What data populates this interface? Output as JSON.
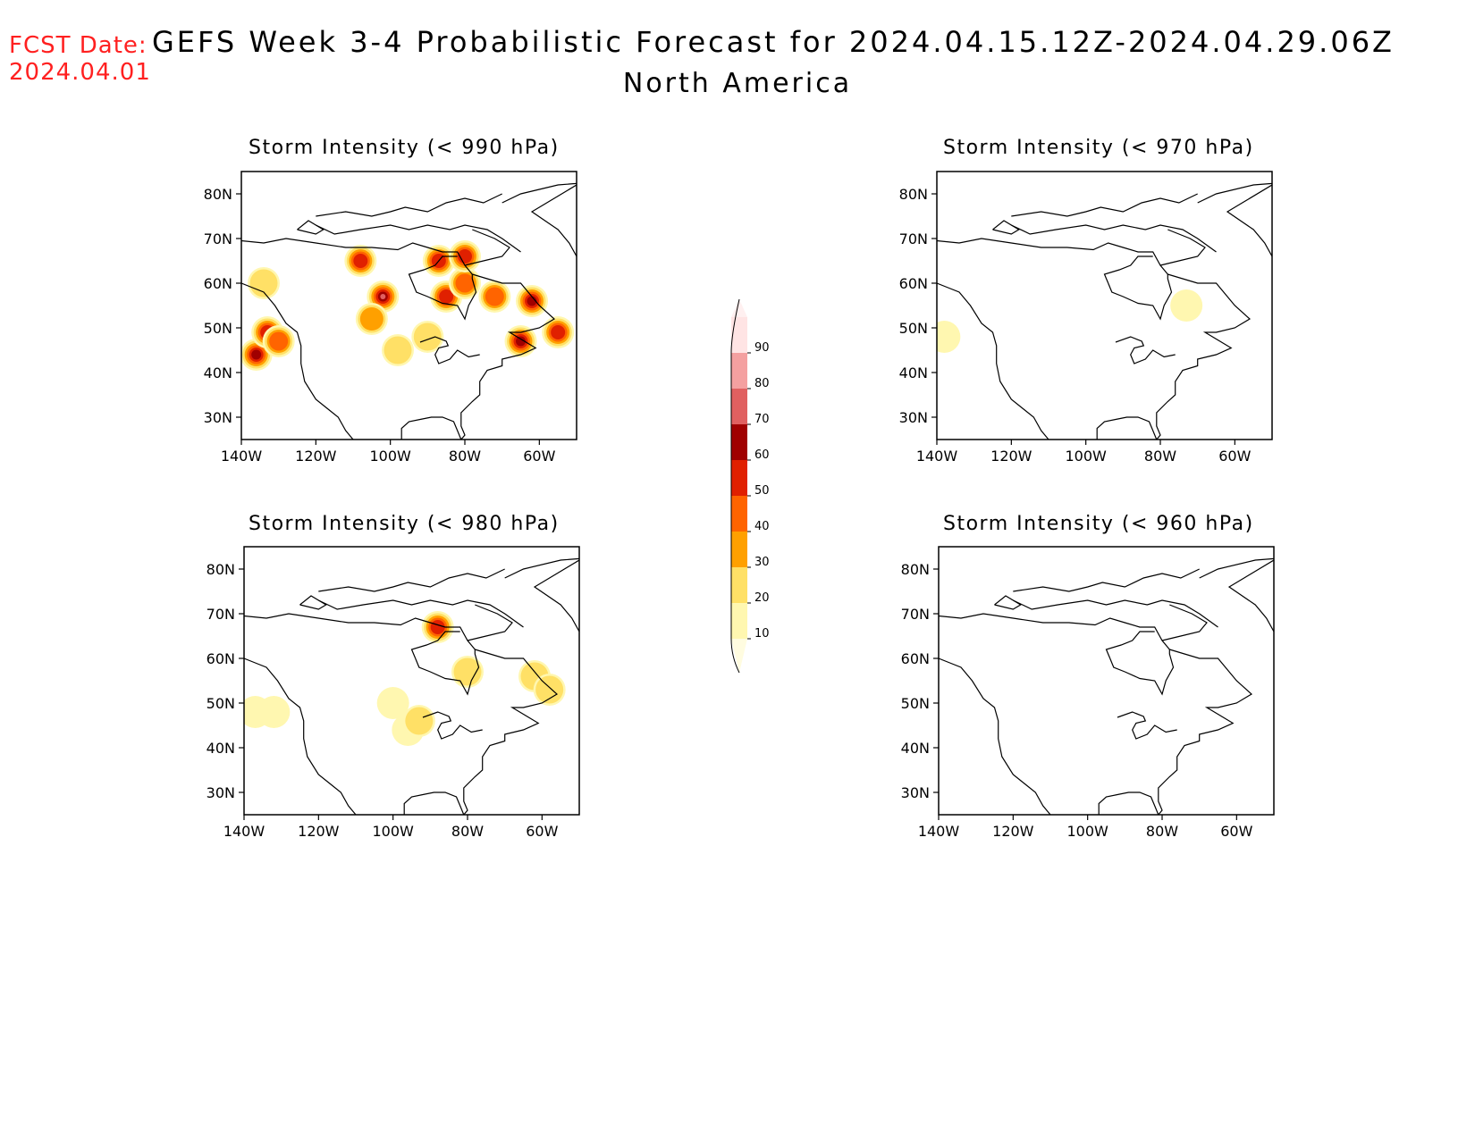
{
  "header": {
    "fcst_label": "FCST Date:",
    "fcst_date": "2024.04.01",
    "title": "GEFS Week 3-4 Probabilistic Forecast for 2024.04.15.12Z-2024.04.29.06Z",
    "region": "North America"
  },
  "panels": [
    {
      "id": "p990",
      "title": "Storm Intensity (< 990 hPa)"
    },
    {
      "id": "p970",
      "title": "Storm Intensity (< 970 hPa)"
    },
    {
      "id": "p980",
      "title": "Storm Intensity (< 980 hPa)"
    },
    {
      "id": "p960",
      "title": "Storm Intensity (< 960 hPa)"
    }
  ],
  "axes": {
    "lat_ticks": [
      "80N",
      "70N",
      "60N",
      "50N",
      "40N",
      "30N"
    ],
    "lat_values": [
      80,
      70,
      60,
      50,
      40,
      30
    ],
    "lon_ticks": [
      "140W",
      "120W",
      "100W",
      "80W",
      "60W"
    ],
    "lon_values": [
      -140,
      -120,
      -100,
      -80,
      -60
    ],
    "lon_range": [
      -140,
      -50
    ],
    "lat_range": [
      25,
      85
    ]
  },
  "colorbar": {
    "levels": [
      "10",
      "20",
      "30",
      "40",
      "50",
      "60",
      "70",
      "80",
      "90"
    ],
    "colors": [
      "#fff7b0",
      "#ffe066",
      "#ffa000",
      "#ff6400",
      "#e02000",
      "#a00000",
      "#e06060",
      "#f4a0a0",
      "#ffe4e4"
    ]
  },
  "chart_data": [
    {
      "type": "heatmap",
      "title": "Storm Intensity (< 990 hPa)",
      "units": "%",
      "blobs": [
        {
          "lon": -136,
          "lat": 44,
          "p": 60
        },
        {
          "lon": -133,
          "lat": 49,
          "p": 50
        },
        {
          "lon": -130,
          "lat": 47,
          "p": 40
        },
        {
          "lon": -134,
          "lat": 60,
          "p": 20
        },
        {
          "lon": -108,
          "lat": 65,
          "p": 50
        },
        {
          "lon": -102,
          "lat": 57,
          "p": 70
        },
        {
          "lon": -105,
          "lat": 52,
          "p": 30
        },
        {
          "lon": -98,
          "lat": 45,
          "p": 20
        },
        {
          "lon": -85,
          "lat": 57,
          "p": 50
        },
        {
          "lon": -80,
          "lat": 60,
          "p": 40
        },
        {
          "lon": -72,
          "lat": 57,
          "p": 40
        },
        {
          "lon": -62,
          "lat": 56,
          "p": 60
        },
        {
          "lon": -65,
          "lat": 47,
          "p": 60
        },
        {
          "lon": -55,
          "lat": 49,
          "p": 50
        },
        {
          "lon": -87,
          "lat": 65,
          "p": 50
        },
        {
          "lon": -80,
          "lat": 66,
          "p": 50
        },
        {
          "lon": -90,
          "lat": 48,
          "p": 20
        }
      ]
    },
    {
      "type": "heatmap",
      "title": "Storm Intensity (< 970 hPa)",
      "units": "%",
      "blobs": [
        {
          "lon": -138,
          "lat": 48,
          "p": 10
        },
        {
          "lon": -73,
          "lat": 55,
          "p": 10
        }
      ]
    },
    {
      "type": "heatmap",
      "title": "Storm Intensity (< 980 hPa)",
      "units": "%",
      "blobs": [
        {
          "lon": -88,
          "lat": 67,
          "p": 50
        },
        {
          "lon": -80,
          "lat": 57,
          "p": 20
        },
        {
          "lon": -62,
          "lat": 56,
          "p": 20
        },
        {
          "lon": -58,
          "lat": 53,
          "p": 20
        },
        {
          "lon": -137,
          "lat": 48,
          "p": 10
        },
        {
          "lon": -132,
          "lat": 48,
          "p": 10
        },
        {
          "lon": -100,
          "lat": 50,
          "p": 10
        },
        {
          "lon": -96,
          "lat": 44,
          "p": 10
        },
        {
          "lon": -93,
          "lat": 46,
          "p": 20
        }
      ]
    },
    {
      "type": "heatmap",
      "title": "Storm Intensity (< 960 hPa)",
      "units": "%",
      "blobs": []
    }
  ]
}
